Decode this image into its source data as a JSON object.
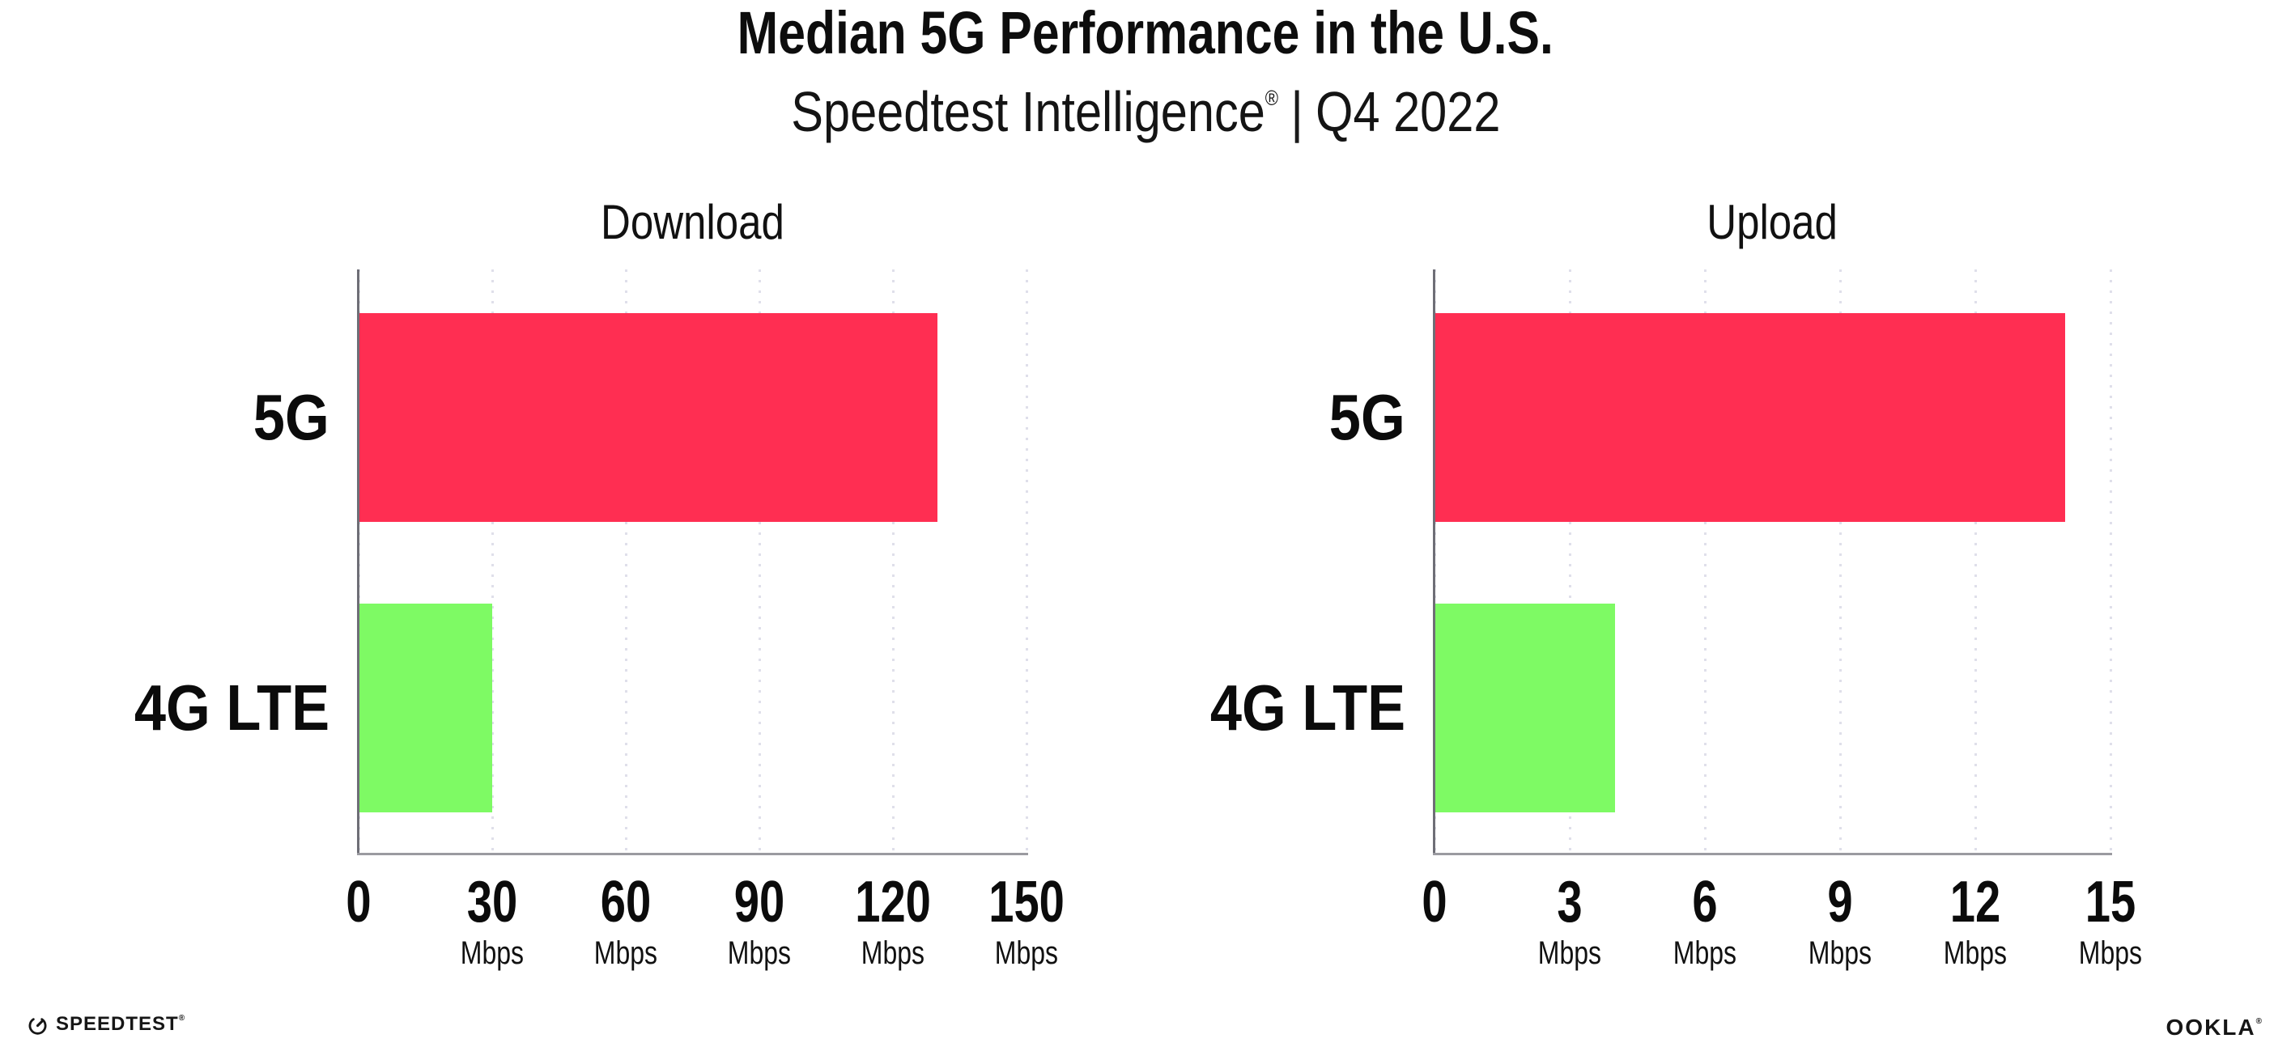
{
  "header": {
    "title": "Median 5G Performance in the U.S.",
    "subtitle_product": "Speedtest Intelligence",
    "subtitle_trademark": "®",
    "subtitle_separator": "|",
    "subtitle_period": "Q4 2022"
  },
  "footer": {
    "speedtest_label": "SPEEDTEST",
    "speedtest_trademark": "®",
    "speedtest_icon": "speedtest-gauge-icon",
    "ookla_label": "OOKLA",
    "ookla_trademark": "®"
  },
  "colors": {
    "bar_5g": "#FF2E52",
    "bar_4g_lte": "#7EFA64",
    "y_axis": "#6E6E76",
    "x_axis": "#9A9AA0",
    "grid_dot": "#DFDFEA",
    "text": "#0D0D0D"
  },
  "chart_data": [
    {
      "type": "bar",
      "orientation": "horizontal",
      "title": "Download",
      "categories": [
        "5G",
        "4G LTE"
      ],
      "values": [
        130,
        30
      ],
      "value_unit": "Mbps",
      "bar_colors": [
        "#FF2E52",
        "#7EFA64"
      ],
      "xlim": [
        0,
        150
      ],
      "xticks": [
        0,
        30,
        60,
        90,
        120,
        150
      ],
      "tick_unit_label": "Mbps",
      "tick_unit_on_zero": false,
      "grid": "dotted-vertical",
      "legend": "none"
    },
    {
      "type": "bar",
      "orientation": "horizontal",
      "title": "Upload",
      "categories": [
        "5G",
        "4G LTE"
      ],
      "values": [
        14,
        4
      ],
      "value_unit": "Mbps",
      "bar_colors": [
        "#FF2E52",
        "#7EFA64"
      ],
      "xlim": [
        0,
        15
      ],
      "xticks": [
        0,
        3,
        6,
        9,
        12,
        15
      ],
      "tick_unit_label": "Mbps",
      "tick_unit_on_zero": false,
      "grid": "dotted-vertical",
      "legend": "none"
    }
  ]
}
